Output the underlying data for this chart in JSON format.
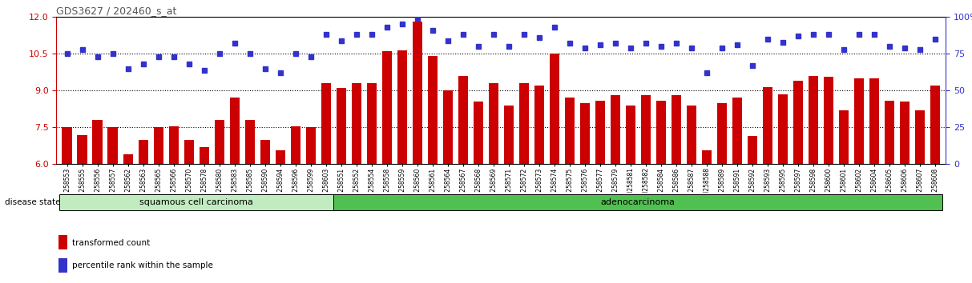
{
  "title": "GDS3627 / 202460_s_at",
  "ylim_left": [
    6,
    12
  ],
  "ylim_right": [
    0,
    100
  ],
  "yticks_left": [
    6,
    7.5,
    9,
    10.5,
    12
  ],
  "yticks_right": [
    0,
    25,
    50,
    75,
    100
  ],
  "dotted_lines": [
    7.5,
    9,
    10.5
  ],
  "samples": [
    "GSM258553",
    "GSM258555",
    "GSM258556",
    "GSM258557",
    "GSM258562",
    "GSM258563",
    "GSM258565",
    "GSM258566",
    "GSM258570",
    "GSM258578",
    "GSM258580",
    "GSM258583",
    "GSM258585",
    "GSM258590",
    "GSM258594",
    "GSM258596",
    "GSM258599",
    "GSM258603",
    "GSM258551",
    "GSM258552",
    "GSM258554",
    "GSM258558",
    "GSM258559",
    "GSM258560",
    "GSM258561",
    "GSM258564",
    "GSM258567",
    "GSM258568",
    "GSM258569",
    "GSM258571",
    "GSM258572",
    "GSM258573",
    "GSM258574",
    "GSM258575",
    "GSM258576",
    "GSM258577",
    "GSM258579",
    "GSM258581",
    "GSM258582",
    "GSM258584",
    "GSM258586",
    "GSM258587",
    "GSM258588",
    "GSM258589",
    "GSM258591",
    "GSM258592",
    "GSM258593",
    "GSM258595",
    "GSM258597",
    "GSM258598",
    "GSM258600",
    "GSM258601",
    "GSM258602",
    "GSM258604",
    "GSM258605",
    "GSM258606",
    "GSM258607",
    "GSM258608"
  ],
  "red_values": [
    7.5,
    7.2,
    7.8,
    7.5,
    6.4,
    7.0,
    7.5,
    7.55,
    7.0,
    6.7,
    7.8,
    8.7,
    7.8,
    7.0,
    6.55,
    7.55,
    7.5,
    9.3,
    9.1,
    9.3,
    9.3,
    10.6,
    10.65,
    11.8,
    10.4,
    9.0,
    9.6,
    8.55,
    9.3,
    8.4,
    9.3,
    9.2,
    10.5,
    8.7,
    8.5,
    8.6,
    8.8,
    8.4,
    8.8,
    8.6,
    8.8,
    8.4,
    6.55,
    8.5,
    8.7,
    7.15,
    9.15,
    8.85,
    9.4,
    9.6,
    9.55,
    8.2,
    9.5,
    9.5,
    8.6,
    8.55,
    8.2,
    9.2
  ],
  "blue_values": [
    75,
    78,
    73,
    75,
    65,
    68,
    73,
    73,
    68,
    64,
    75,
    82,
    75,
    65,
    62,
    75,
    73,
    88,
    84,
    88,
    88,
    93,
    95,
    99,
    91,
    84,
    88,
    80,
    88,
    80,
    88,
    86,
    93,
    82,
    79,
    81,
    82,
    79,
    82,
    80,
    82,
    79,
    62,
    79,
    81,
    67,
    85,
    83,
    87,
    88,
    88,
    78,
    88,
    88,
    80,
    79,
    78,
    85
  ],
  "squamous_count": 18,
  "bar_color": "#cc0000",
  "dot_color": "#3333cc",
  "squamous_color": "#c0ecc0",
  "adeno_color": "#50c050",
  "band_label_squamous": "squamous cell carcinoma",
  "band_label_adeno": "adenocarcinoma",
  "disease_state_label": "disease state",
  "legend_red": "transformed count",
  "legend_blue": "percentile rank within the sample",
  "left_axis_color": "#cc0000",
  "right_axis_color": "#3333cc"
}
